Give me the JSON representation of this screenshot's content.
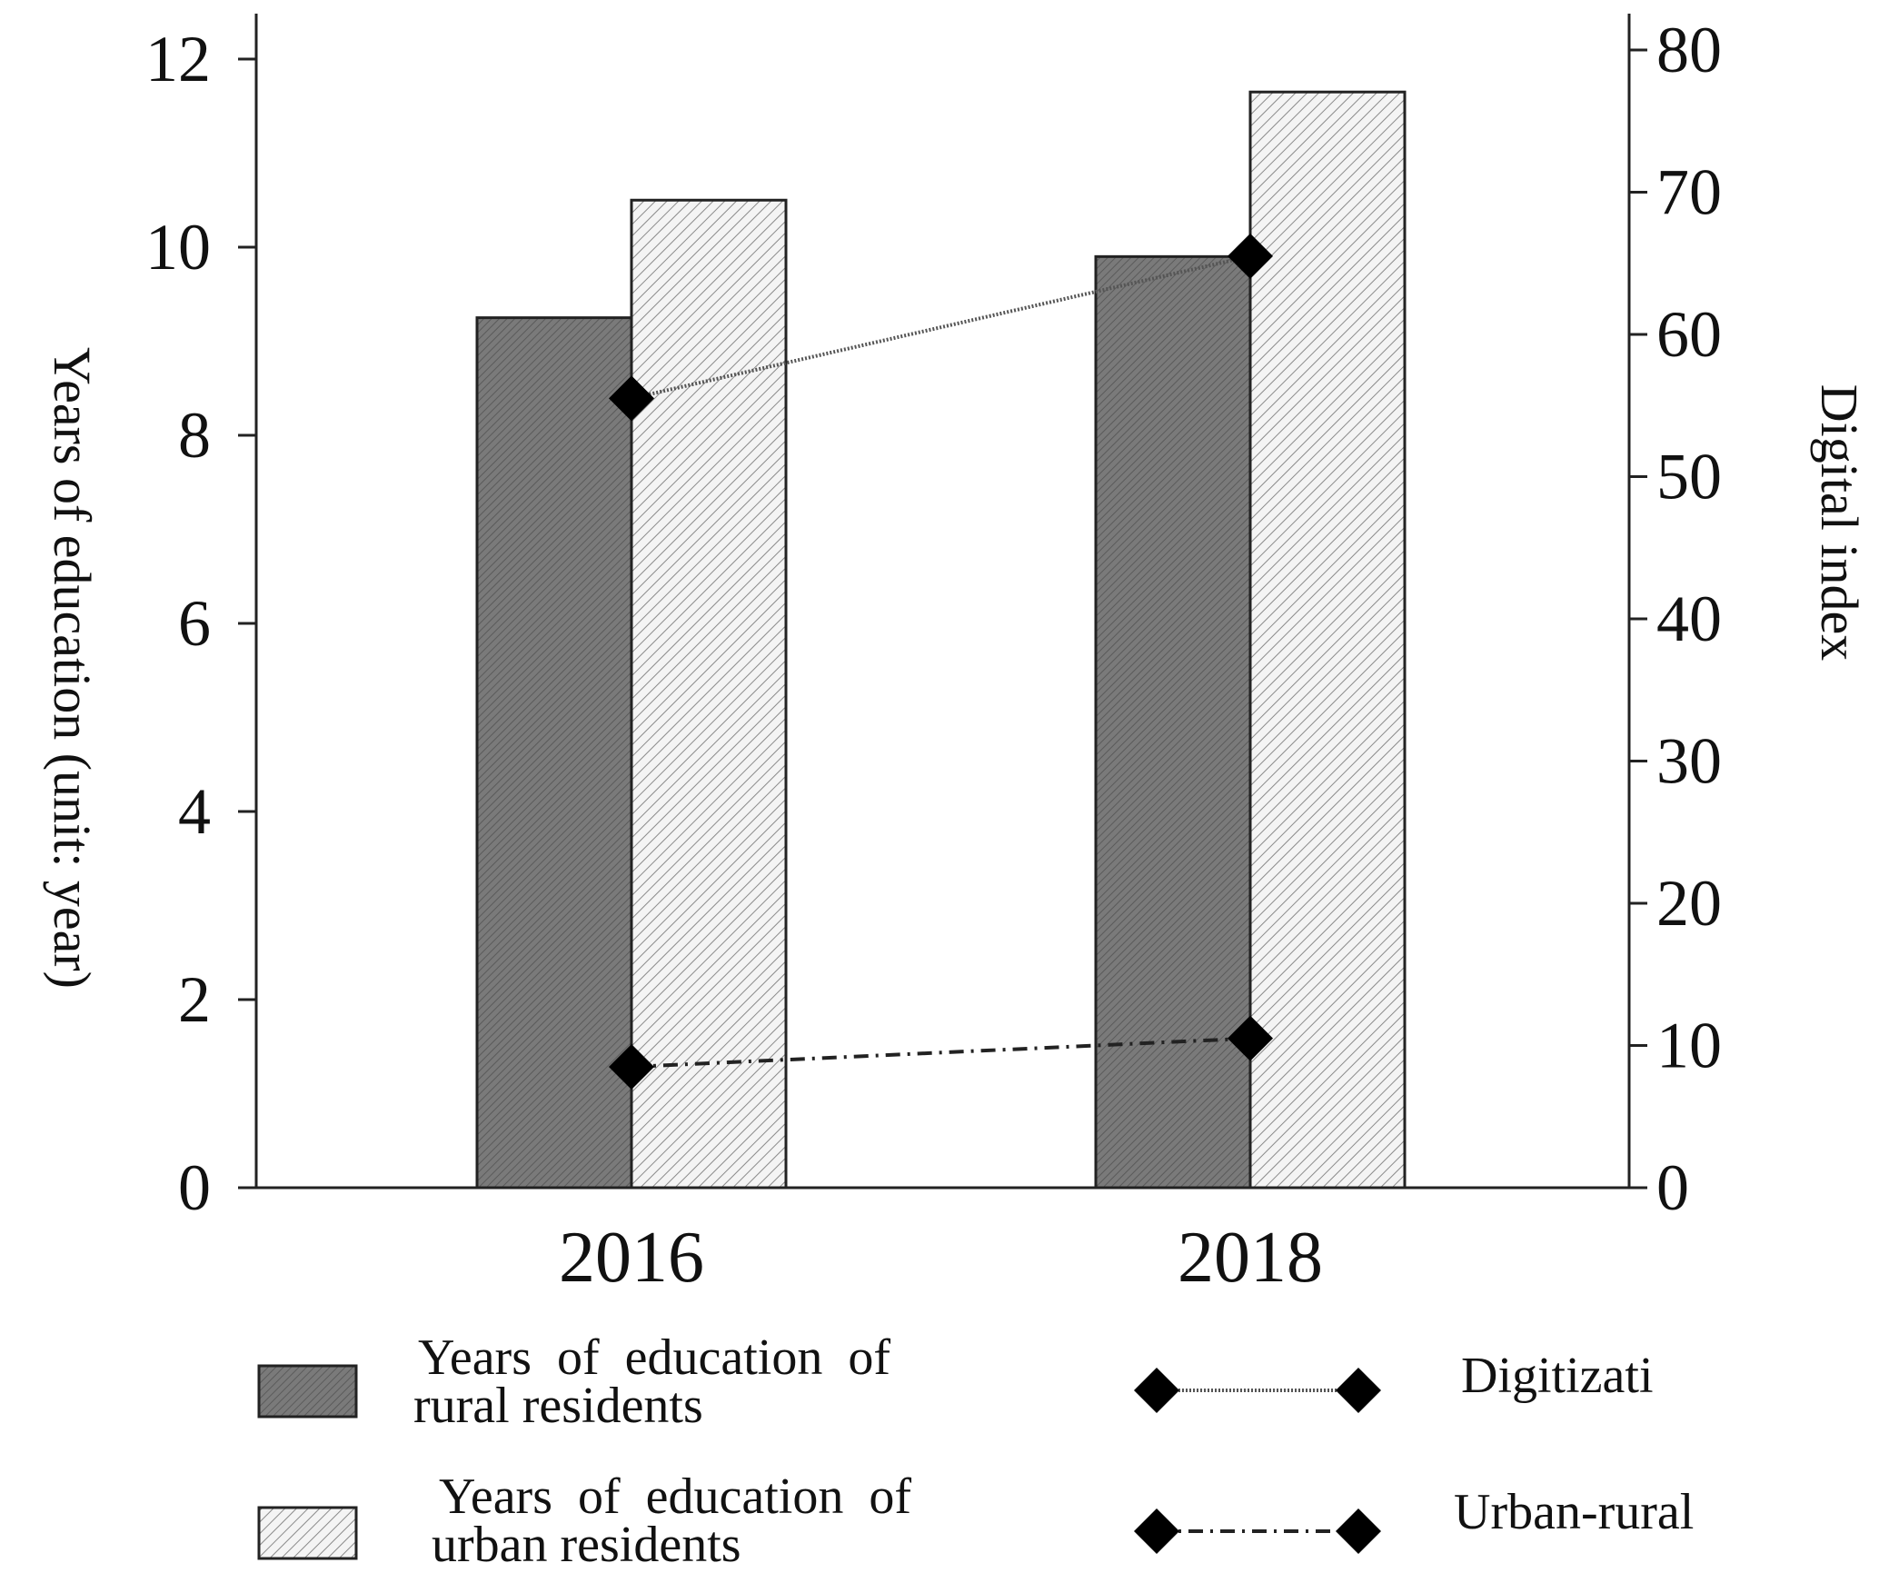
{
  "chart_data": {
    "type": "bar",
    "title": "",
    "categories": [
      "2016",
      "2018"
    ],
    "series": [
      {
        "name": "Years of education of rural residents",
        "axis": "left",
        "type": "bar",
        "values": [
          9.25,
          9.9
        ]
      },
      {
        "name": "Years of education of urban residents",
        "axis": "left",
        "type": "bar",
        "values": [
          10.5,
          11.65
        ]
      },
      {
        "name": "Digitizati",
        "axis": "right",
        "type": "line",
        "style": "dotted",
        "values": [
          55.5,
          65.5
        ]
      },
      {
        "name": "Urban-rural",
        "axis": "right",
        "type": "line",
        "style": "dash-dot",
        "values": [
          8.5,
          10.5
        ]
      }
    ],
    "ylabel": "Years of education (unit: year)",
    "y2label": "Digital index",
    "xlabel": "",
    "ylim": [
      0,
      12
    ],
    "y2lim": [
      0,
      80
    ],
    "yticks": [
      "0",
      "2",
      "4",
      "6",
      "8",
      "10",
      "12"
    ],
    "y2ticks": [
      "0",
      "10",
      "20",
      "30",
      "40",
      "50",
      "60",
      "70",
      "80"
    ],
    "legend": {
      "position": "bottom",
      "rural_line1": "Years  of  education  of",
      "rural_line2": "rural residents",
      "urban_line1": "Years  of  education  of",
      "urban_line2": "urban residents",
      "digit": "Digitizati",
      "urban_rural": "Urban-rural"
    },
    "colors": {
      "rural_bar": "#777777",
      "urban_bar": "#eeeeee",
      "marker": "#000000",
      "axis": "#222222"
    }
  }
}
